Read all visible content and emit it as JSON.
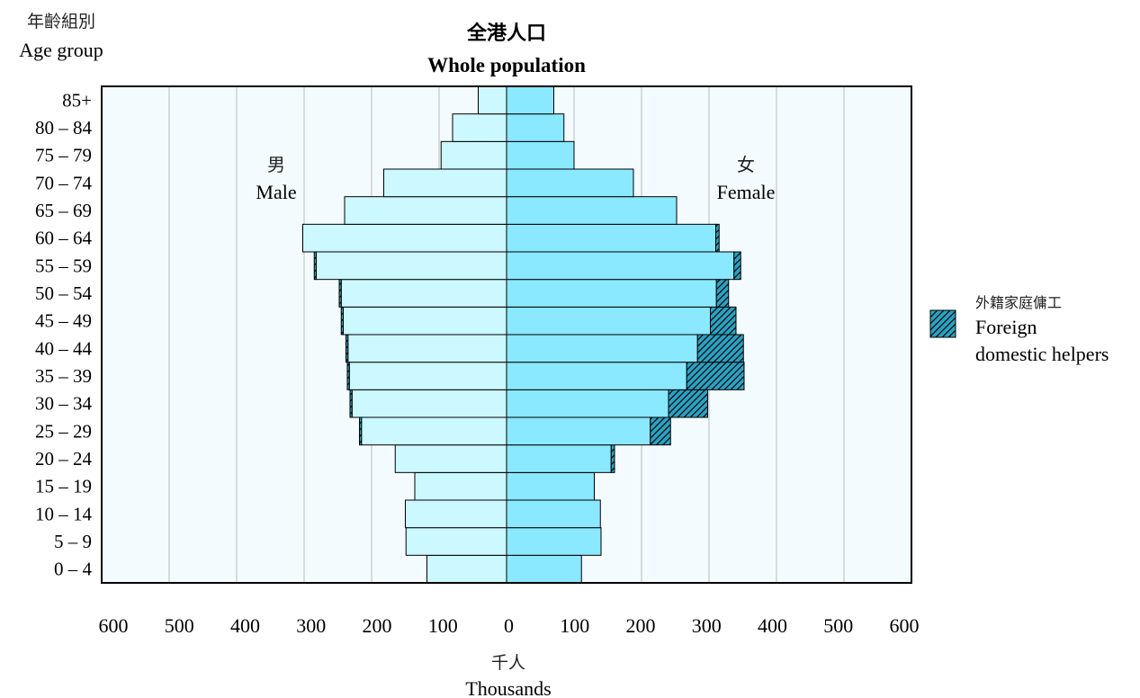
{
  "chart_data": {
    "type": "bar",
    "subtype": "population-pyramid",
    "title": "全港人口",
    "subtitle": "Whole population",
    "ylabel_cn": "年齡組別",
    "ylabel": "Age group",
    "xlabel_cn": "千人",
    "xlabel": "Thousands",
    "male_label_cn": "男",
    "male_label": "Male",
    "female_label_cn": "女",
    "female_label": "Female",
    "legend": {
      "placement": "right",
      "label_cn": "外籍家庭傭工",
      "label_line1": "Foreign",
      "label_line2": "domestic helpers"
    },
    "x_ticks": [
      "600",
      "500",
      "400",
      "300",
      "200",
      "100",
      "0",
      "100",
      "200",
      "300",
      "400",
      "500",
      "600"
    ],
    "xlim": [
      -600,
      600
    ],
    "grid": true,
    "colors": {
      "male": "#ccf8ff",
      "female": "#8ae8ff",
      "helpers_fill": "#1f8fb0",
      "plot_bg": "#f4fbfe",
      "gridline": "#bbbbbb"
    },
    "categories": [
      "0 – 4",
      "5 – 9",
      "10 – 14",
      "15 – 19",
      "20 – 24",
      "25 – 29",
      "30 – 34",
      "35 – 39",
      "40 – 44",
      "45 – 49",
      "50 – 54",
      "55 – 59",
      "60 – 64",
      "65 – 69",
      "70 – 74",
      "75 – 79",
      "80 – 84",
      "85+"
    ],
    "series": [
      {
        "name": "Male",
        "values": [
          118,
          149,
          150,
          136,
          165,
          215,
          229,
          233,
          235,
          242,
          245,
          282,
          302,
          240,
          182,
          97,
          80,
          42
        ]
      },
      {
        "name": "Female",
        "values": [
          111,
          140,
          139,
          130,
          155,
          213,
          240,
          267,
          283,
          302,
          311,
          337,
          310,
          252,
          188,
          100,
          85,
          70
        ]
      },
      {
        "name": "Female foreign domestic helpers",
        "values": [
          0,
          0,
          0,
          0,
          5,
          30,
          58,
          85,
          68,
          38,
          18,
          10,
          5,
          0,
          0,
          0,
          0,
          0
        ]
      },
      {
        "name": "Male foreign domestic helpers",
        "values": [
          0,
          0,
          0,
          0,
          0,
          3,
          3,
          3,
          3,
          3,
          3,
          3,
          0,
          0,
          0,
          0,
          0,
          0
        ]
      }
    ]
  }
}
